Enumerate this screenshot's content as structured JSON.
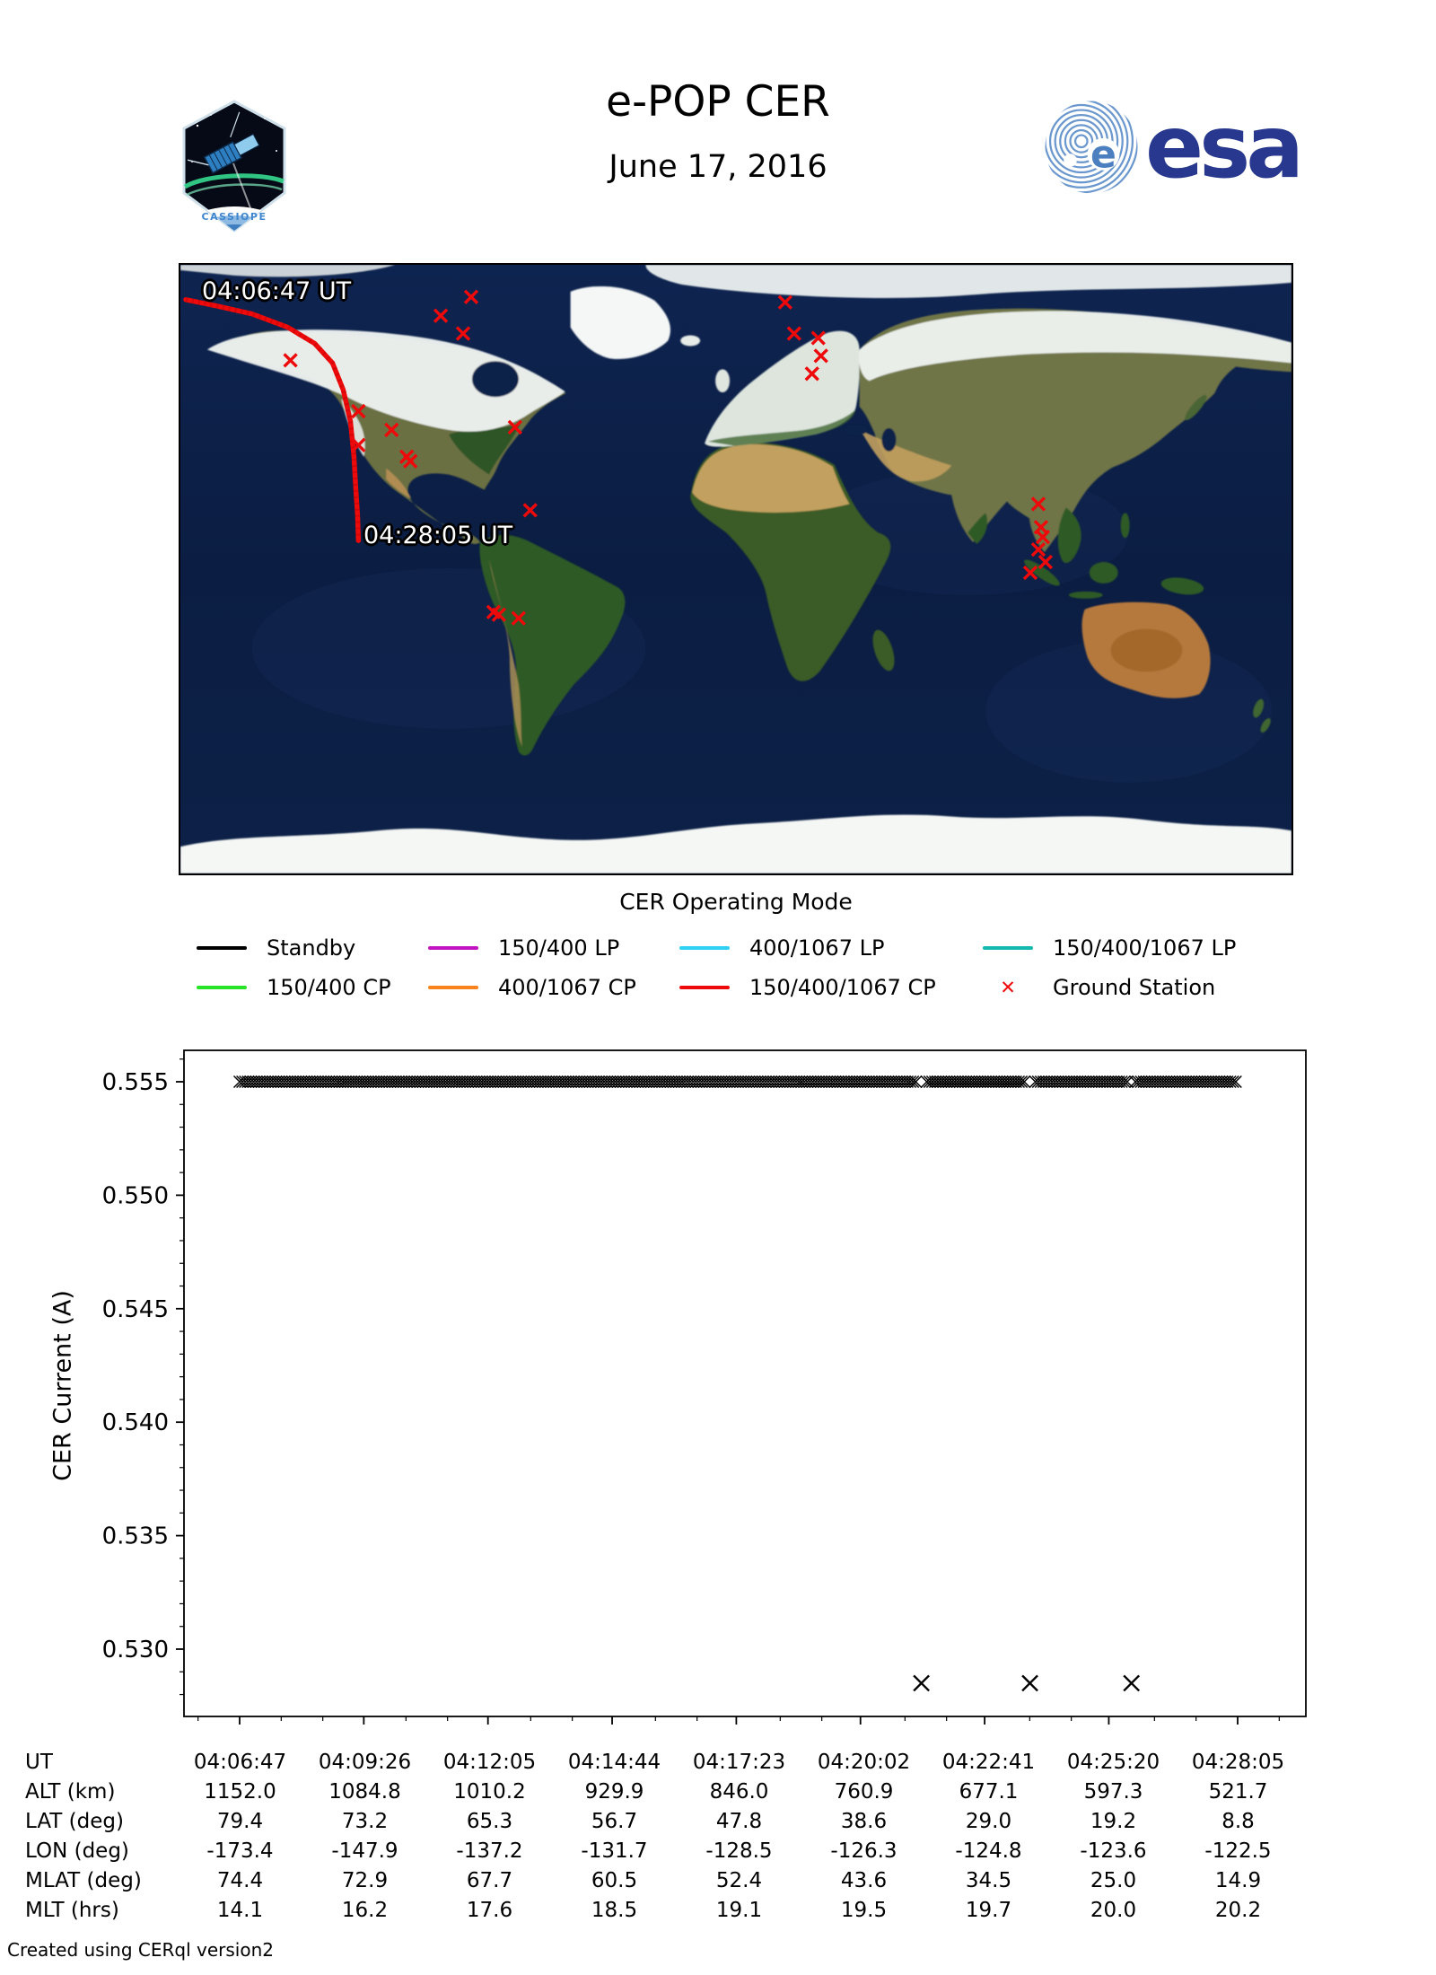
{
  "header": {
    "title": "e-POP CER",
    "date": "June 17, 2016",
    "patch_label": "CASSIOPE",
    "esa_label": "esa"
  },
  "map": {
    "start_label": "04:06:47 UT",
    "end_label": "04:28:05 UT",
    "track_color": "#ee0a0a",
    "track": [
      [
        6,
        39
      ],
      [
        40,
        46
      ],
      [
        80,
        55
      ],
      [
        120,
        70
      ],
      [
        150,
        88
      ],
      [
        170,
        110
      ],
      [
        182,
        140
      ],
      [
        190,
        175
      ],
      [
        194,
        215
      ],
      [
        196,
        250
      ],
      [
        198,
        280
      ],
      [
        199,
        309
      ]
    ],
    "ground_station_color": "#ee0a0a",
    "ground_stations": [
      [
        325,
        36
      ],
      [
        291,
        57
      ],
      [
        316,
        77
      ],
      [
        123,
        107
      ],
      [
        199,
        164
      ],
      [
        236,
        185
      ],
      [
        199,
        202
      ],
      [
        253,
        215
      ],
      [
        257,
        220
      ],
      [
        374,
        182
      ],
      [
        391,
        275
      ],
      [
        676,
        42
      ],
      [
        686,
        77
      ],
      [
        713,
        82
      ],
      [
        716,
        102
      ],
      [
        706,
        122
      ],
      [
        350,
        389
      ],
      [
        356,
        392
      ],
      [
        378,
        396
      ],
      [
        959,
        268
      ],
      [
        962,
        294
      ],
      [
        964,
        305
      ],
      [
        959,
        319
      ],
      [
        967,
        333
      ],
      [
        950,
        345
      ]
    ]
  },
  "legend": {
    "title": "CER Operating Mode",
    "items": [
      {
        "label": "Standby",
        "color": "#000000",
        "type": "line"
      },
      {
        "label": "150/400 LP",
        "color": "#c213c2",
        "type": "line"
      },
      {
        "label": "400/1067 LP",
        "color": "#2fd2f5",
        "type": "line"
      },
      {
        "label": "150/400/1067 LP",
        "color": "#13b9ae",
        "type": "line"
      },
      {
        "label": "150/400 CP",
        "color": "#27e427",
        "type": "line"
      },
      {
        "label": "400/1067 CP",
        "color": "#f8821b",
        "type": "line"
      },
      {
        "label": "150/400/1067 CP",
        "color": "#ee0a0a",
        "type": "line"
      },
      {
        "label": "Ground Station",
        "color": "#ee0a0a",
        "type": "marker"
      }
    ]
  },
  "chart_data": {
    "type": "scatter",
    "title": "",
    "xlabel": "UT",
    "ylabel": "CER Current (A)",
    "ylim": [
      0.527,
      0.5565
    ],
    "yticks": [
      "0.530",
      "0.535",
      "0.540",
      "0.545",
      "0.550",
      "0.555"
    ],
    "xticklabels": [
      "04:06:47",
      "04:09:26",
      "04:12:05",
      "04:14:44",
      "04:17:23",
      "04:20:02",
      "04:22:41",
      "04:25:20",
      "04:28:05"
    ],
    "grid": false,
    "marker": "x",
    "series": [
      {
        "name": "CER current (Standby mode)",
        "marker": "x",
        "color": "#000000",
        "behavior": "dense constant samples",
        "value": 0.555,
        "t_start": "04:06:47",
        "t_end": "04:28:05",
        "gap_times": [
          "04:21:20",
          "04:23:39",
          "04:25:49"
        ]
      },
      {
        "name": "CER current dropouts",
        "marker": "x",
        "color": "#000000",
        "points": [
          {
            "t": "04:21:20",
            "v": 0.5285
          },
          {
            "t": "04:23:39",
            "v": 0.5285
          },
          {
            "t": "04:25:49",
            "v": 0.5285
          }
        ]
      }
    ]
  },
  "table": {
    "rows": [
      {
        "label": "UT",
        "values": [
          "04:06:47",
          "04:09:26",
          "04:12:05",
          "04:14:44",
          "04:17:23",
          "04:20:02",
          "04:22:41",
          "04:25:20",
          "04:28:05"
        ]
      },
      {
        "label": "ALT (km)",
        "values": [
          "1152.0",
          "1084.8",
          "1010.2",
          "929.9",
          "846.0",
          "760.9",
          "677.1",
          "597.3",
          "521.7"
        ]
      },
      {
        "label": "LAT (deg)",
        "values": [
          "79.4",
          "73.2",
          "65.3",
          "56.7",
          "47.8",
          "38.6",
          "29.0",
          "19.2",
          "8.8"
        ]
      },
      {
        "label": "LON (deg)",
        "values": [
          "-173.4",
          "-147.9",
          "-137.2",
          "-131.7",
          "-128.5",
          "-126.3",
          "-124.8",
          "-123.6",
          "-122.5"
        ]
      },
      {
        "label": "MLAT (deg)",
        "values": [
          "74.4",
          "72.9",
          "67.7",
          "60.5",
          "52.4",
          "43.6",
          "34.5",
          "25.0",
          "14.9"
        ]
      },
      {
        "label": "MLT (hrs)",
        "values": [
          "14.1",
          "16.2",
          "17.6",
          "18.5",
          "19.1",
          "19.5",
          "19.7",
          "20.0",
          "20.2"
        ]
      }
    ]
  },
  "footer": {
    "credit": "Created using CERql version2"
  }
}
